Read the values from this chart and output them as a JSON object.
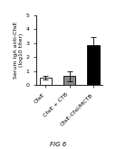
{
  "categories": [
    "CfaE",
    "CfaE + CTB",
    "CfaE-CfaI/MCTB"
  ],
  "values": [
    0.55,
    0.65,
    2.9
  ],
  "errors": [
    0.15,
    0.35,
    0.55
  ],
  "bar_colors": [
    "white",
    "#888888",
    "black"
  ],
  "bar_edgecolors": [
    "black",
    "black",
    "black"
  ],
  "ylabel": "Serum IgA anti-CfaE\n(log10 titer)",
  "ylim": [
    0,
    5
  ],
  "yticks": [
    0,
    1,
    2,
    3,
    4,
    5
  ],
  "figure_label": "FIG 6",
  "background_color": "white",
  "bar_width": 0.5
}
